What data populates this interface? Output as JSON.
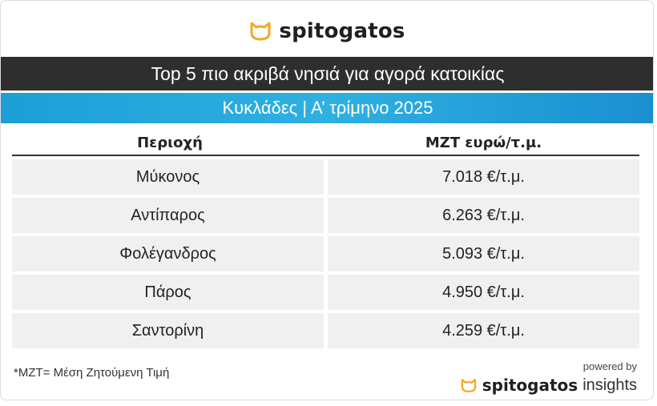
{
  "brand": {
    "name": "spitogatos",
    "icon": "cat-face-icon",
    "color": "#f5a623"
  },
  "title": "Top 5 πιο ακριβά νησιά για αγορά κατοικίας",
  "subtitle": "Κυκλάδες | Α’ τρίμηνο 2025",
  "table": {
    "headers": [
      "Περιοχή",
      "ΜΖΤ ευρώ/τ.μ."
    ],
    "rows": [
      {
        "region": "Μύκονος",
        "price": "7.018 €/τ.μ."
      },
      {
        "region": "Αντίπαρος",
        "price": "6.263 €/τ.μ."
      },
      {
        "region": "Φολέγανδρος",
        "price": "5.093 €/τ.μ."
      },
      {
        "region": "Πάρος",
        "price": "4.950 €/τ.μ."
      },
      {
        "region": "Σαντορίνη",
        "price": "4.259 €/τ.μ."
      }
    ]
  },
  "footnote": "*ΜΖΤ= Μέση Ζητούμενη Τιμή",
  "powered": {
    "label": "powered by",
    "name": "spitogatos",
    "suffix": "insights"
  },
  "colors": {
    "title_bg": "#2e2e2e",
    "subtitle_bg": "#1b9fd6",
    "row_bg": "#f0f0f0"
  }
}
